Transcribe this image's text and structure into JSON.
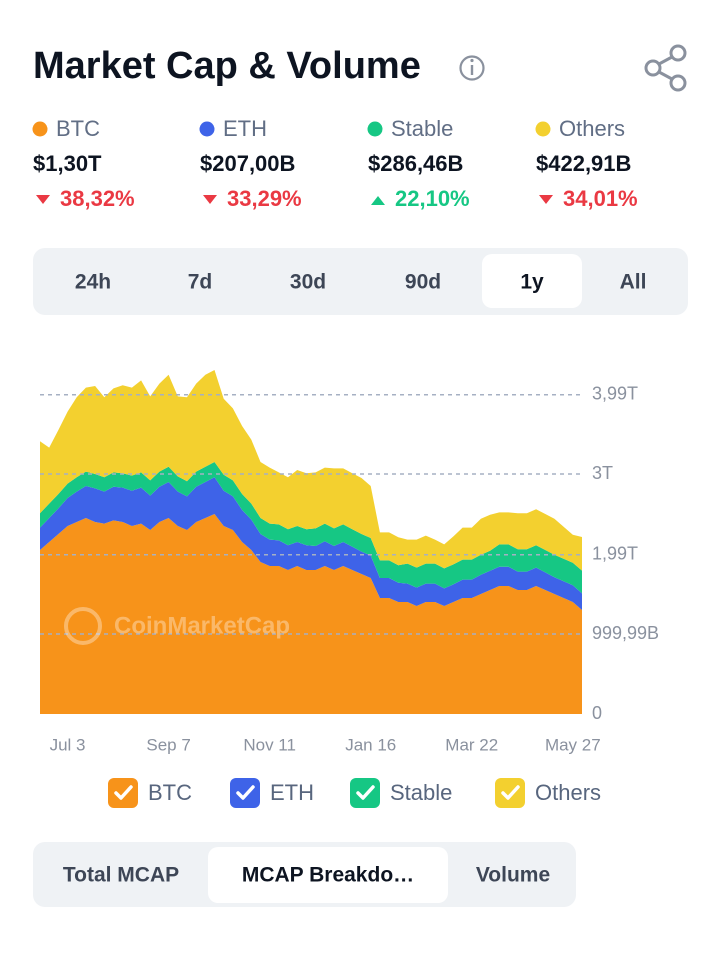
{
  "header": {
    "title": "Market Cap & Volume"
  },
  "stats": [
    {
      "name": "BTC",
      "value": "$1,30T",
      "change": "38,32%",
      "trend": "down"
    },
    {
      "name": "ETH",
      "value": "$207,00B",
      "change": "33,29%",
      "trend": "down"
    },
    {
      "name": "Stable",
      "value": "$286,46B",
      "change": "22,10%",
      "trend": "up"
    },
    {
      "name": "Others",
      "value": "$422,91B",
      "change": "34,01%",
      "trend": "down"
    }
  ],
  "time_tabs": {
    "options": [
      "24h",
      "7d",
      "30d",
      "90d",
      "1y",
      "All"
    ],
    "selected": "1y"
  },
  "chart_data": {
    "type": "stacked-area",
    "watermark": "CoinMarketCap",
    "categories": [
      null,
      null,
      null,
      "Jul 3",
      null,
      null,
      null,
      null,
      null,
      null,
      null,
      null,
      null,
      null,
      "Sep 7",
      null,
      null,
      null,
      null,
      null,
      null,
      null,
      null,
      null,
      null,
      "Nov 11",
      null,
      null,
      null,
      null,
      null,
      null,
      null,
      null,
      null,
      null,
      "Jan 16",
      null,
      null,
      null,
      null,
      null,
      null,
      null,
      null,
      null,
      null,
      "Mar 22",
      null,
      null,
      null,
      null,
      null,
      null,
      null,
      null,
      null,
      null,
      "May 27",
      null
    ],
    "series": [
      {
        "name": "BTC",
        "color": "#f7931a",
        "values": [
          2050,
          2150,
          2250,
          2350,
          2400,
          2450,
          2400,
          2380,
          2420,
          2400,
          2350,
          2380,
          2300,
          2400,
          2450,
          2350,
          2300,
          2400,
          2450,
          2500,
          2350,
          2300,
          2150,
          2050,
          1900,
          1850,
          1850,
          1800,
          1850,
          1800,
          1800,
          1850,
          1800,
          1850,
          1800,
          1750,
          1700,
          1450,
          1450,
          1400,
          1400,
          1350,
          1400,
          1400,
          1350,
          1400,
          1450,
          1450,
          1500,
          1550,
          1600,
          1600,
          1550,
          1550,
          1600,
          1550,
          1500,
          1450,
          1400,
          1300
        ]
      },
      {
        "name": "ETH",
        "color": "#3e63e8",
        "values": [
          280,
          300,
          320,
          350,
          380,
          400,
          420,
          400,
          420,
          430,
          440,
          450,
          430,
          440,
          450,
          430,
          420,
          440,
          450,
          460,
          440,
          420,
          400,
          380,
          350,
          330,
          320,
          310,
          300,
          310,
          300,
          310,
          300,
          300,
          290,
          280,
          280,
          250,
          250,
          240,
          230,
          230,
          230,
          230,
          220,
          220,
          230,
          230,
          240,
          240,
          240,
          240,
          230,
          230,
          230,
          220,
          210,
          210,
          210,
          207
        ]
      },
      {
        "name": "Stable",
        "color": "#16c784",
        "values": [
          180,
          180,
          180,
          180,
          180,
          180,
          180,
          180,
          180,
          180,
          190,
          190,
          190,
          190,
          190,
          190,
          190,
          190,
          190,
          190,
          200,
          200,
          200,
          200,
          200,
          200,
          200,
          200,
          200,
          200,
          220,
          220,
          220,
          220,
          220,
          220,
          220,
          220,
          220,
          220,
          250,
          250,
          250,
          250,
          250,
          250,
          250,
          250,
          250,
          250,
          280,
          280,
          280,
          280,
          280,
          280,
          280,
          280,
          280,
          286
        ]
      },
      {
        "name": "Others",
        "color": "#f3d02f",
        "values": [
          900,
          700,
          800,
          900,
          1000,
          1050,
          1100,
          1000,
          1050,
          1100,
          1100,
          1150,
          1050,
          1100,
          1150,
          1000,
          1050,
          1100,
          1150,
          1150,
          950,
          900,
          850,
          800,
          700,
          700,
          650,
          650,
          700,
          700,
          700,
          700,
          750,
          700,
          700,
          700,
          650,
          350,
          350,
          350,
          300,
          350,
          350,
          300,
          300,
          350,
          400,
          400,
          450,
          450,
          400,
          400,
          450,
          450,
          450,
          450,
          450,
          400,
          350,
          420
        ]
      }
    ],
    "ylim": [
      0,
      4400
    ],
    "yticks": [
      0,
      {
        "value": 999.99,
        "label": "999,99B"
      },
      {
        "value": 1990,
        "label": "1,99T"
      },
      {
        "value": 3000,
        "label": "3T"
      },
      {
        "value": 3990,
        "label": "3,99T"
      }
    ],
    "grid": true
  },
  "view_tabs": {
    "options": [
      "Total MCAP",
      "MCAP Breakdo…",
      "Volume"
    ],
    "selected": "MCAP Breakdo…"
  }
}
